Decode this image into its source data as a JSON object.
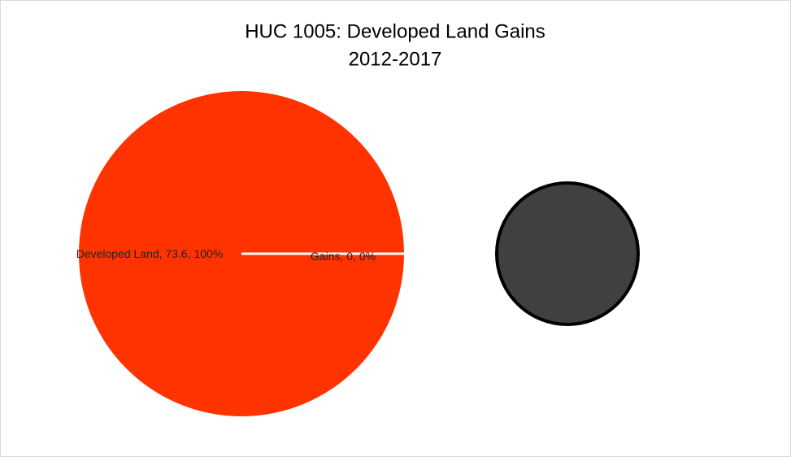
{
  "chart_data": {
    "type": "pie-of-pie",
    "title": "HUC 1005: Developed Land Gains",
    "subtitle": "2012-2017",
    "categories": [
      "Developed Land",
      "Gains"
    ],
    "values": [
      73.6,
      0
    ],
    "value_labels": [
      "Developed Land, 73.6, 100%",
      "Gains, 0, 0%"
    ],
    "colors": [
      "#ff3300",
      "#404040"
    ]
  }
}
